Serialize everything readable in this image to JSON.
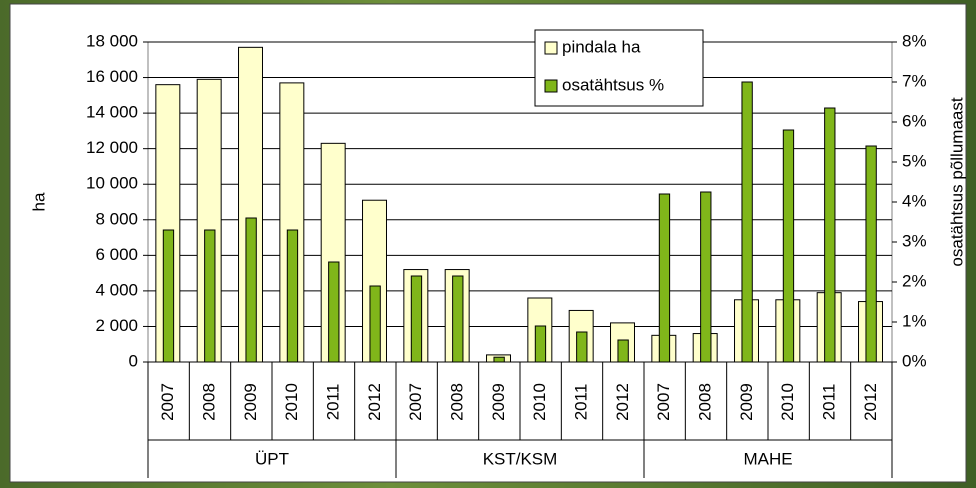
{
  "chart_data": {
    "type": "bar",
    "ylabel": "ha",
    "y2label": "osatähtsus põllumaast",
    "categories": [
      "2007",
      "2008",
      "2009",
      "2010",
      "2011",
      "2012",
      "2007",
      "2008",
      "2009",
      "2010",
      "2011",
      "2012",
      "2007",
      "2008",
      "2009",
      "2010",
      "2011",
      "2012"
    ],
    "group_labels": [
      "ÜPT",
      "KST/KSM",
      "MAHE"
    ],
    "series": [
      {
        "name": "pindala ha",
        "color": "#ffffcc",
        "values": [
          15600,
          15900,
          17700,
          15700,
          12300,
          9100,
          5200,
          5200,
          400,
          3600,
          2900,
          2200,
          1500,
          1600,
          3500,
          3500,
          3900,
          3400
        ]
      },
      {
        "name": "osatähtsus %",
        "color": "#80b61a",
        "axis": "y2",
        "values": [
          3.3,
          3.3,
          3.6,
          3.3,
          2.5,
          1.9,
          2.15,
          2.15,
          0.12,
          0.9,
          0.75,
          0.55,
          4.2,
          4.25,
          7.0,
          5.8,
          6.35,
          5.4
        ]
      }
    ],
    "ylim": [
      0,
      18000
    ],
    "yticks": [
      0,
      {
        "value": 2000,
        "label": "2 000"
      },
      {
        "value": 4000,
        "label": "4 000"
      },
      {
        "value": 6000,
        "label": "6 000"
      },
      {
        "value": 8000,
        "label": "8 000"
      },
      {
        "value": 10000,
        "label": "10 000"
      },
      {
        "value": 12000,
        "label": "12 000"
      },
      {
        "value": 14000,
        "label": "14 000"
      },
      {
        "value": 16000,
        "label": "16 000"
      },
      {
        "value": 18000,
        "label": "18 000"
      }
    ],
    "y2lim": [
      0,
      8
    ],
    "y2ticks": [
      {
        "value": 0,
        "label": "0%"
      },
      {
        "value": 1,
        "label": "1%"
      },
      {
        "value": 2,
        "label": "2%"
      },
      {
        "value": 3,
        "label": "3%"
      },
      {
        "value": 4,
        "label": "4%"
      },
      {
        "value": 5,
        "label": "5%"
      },
      {
        "value": 6,
        "label": "6%"
      },
      {
        "value": 7,
        "label": "7%"
      },
      {
        "value": 8,
        "label": "8%"
      }
    ],
    "grid": true,
    "legend": "top-right"
  }
}
